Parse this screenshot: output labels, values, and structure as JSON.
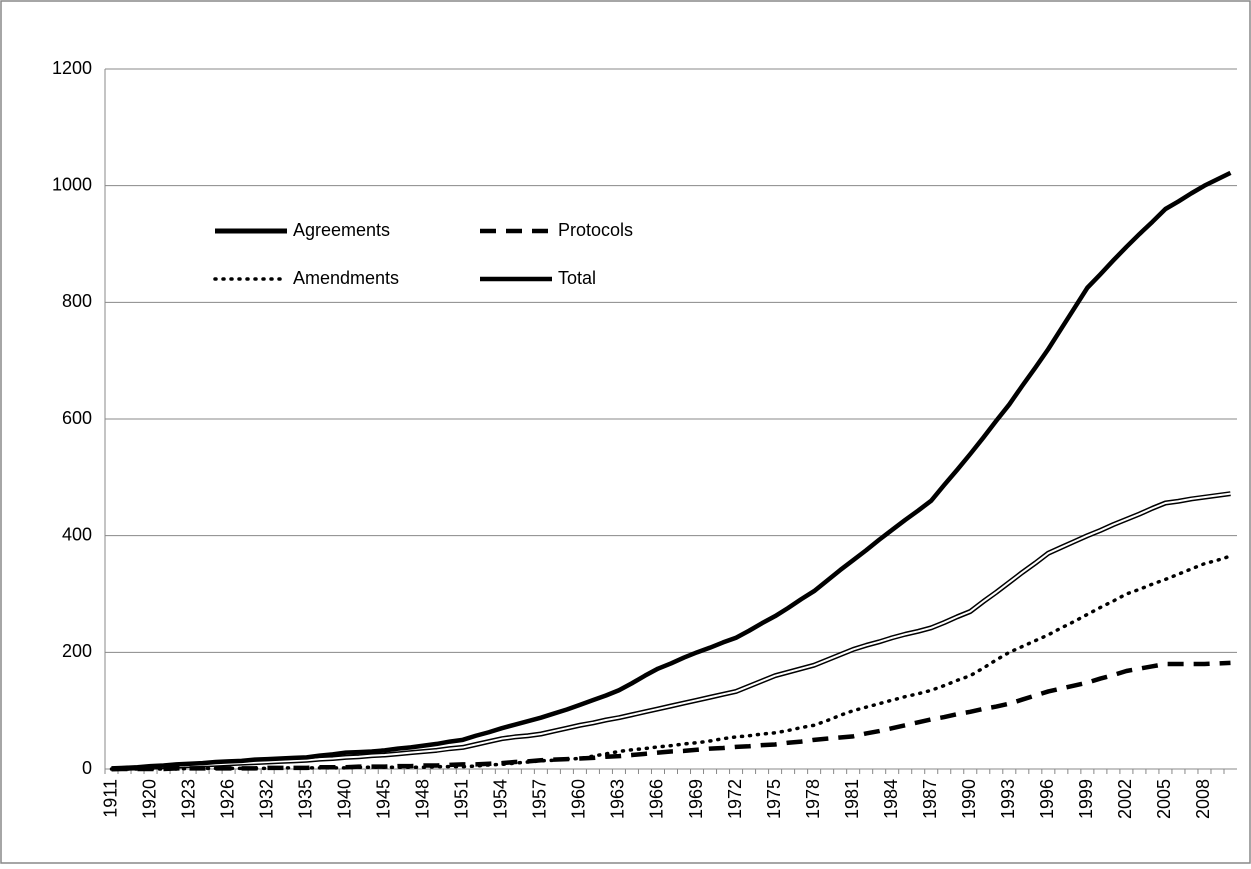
{
  "chart_data": {
    "type": "line",
    "categories": [
      "1911",
      null,
      null,
      "1920",
      null,
      null,
      "1923",
      null,
      null,
      "1926",
      null,
      null,
      "1932",
      null,
      null,
      "1935",
      null,
      null,
      "1940",
      null,
      null,
      "1945",
      null,
      null,
      "1948",
      null,
      null,
      "1951",
      null,
      null,
      "1954",
      null,
      null,
      "1957",
      null,
      null,
      "1960",
      null,
      null,
      "1963",
      null,
      null,
      "1966",
      null,
      null,
      "1969",
      null,
      null,
      "1972",
      null,
      null,
      "1975",
      null,
      null,
      "1978",
      null,
      null,
      "1981",
      null,
      null,
      "1984",
      null,
      null,
      "1987",
      null,
      null,
      "1990",
      null,
      null,
      "1993",
      null,
      null,
      "1996",
      null,
      null,
      "1999",
      null,
      null,
      "2002",
      null,
      null,
      "2005",
      null,
      null,
      "2008",
      null,
      null
    ],
    "series": [
      {
        "name": "Agreements",
        "color": "#000000",
        "style": "double",
        "values": [
          0,
          1,
          2,
          3,
          4,
          5,
          6,
          7,
          8,
          9,
          10,
          11,
          12,
          13,
          14,
          15,
          17,
          18,
          20,
          21,
          23,
          24,
          26,
          28,
          30,
          32,
          35,
          37,
          42,
          47,
          52,
          55,
          57,
          60,
          65,
          70,
          75,
          79,
          84,
          88,
          93,
          98,
          103,
          108,
          113,
          118,
          123,
          128,
          133,
          142,
          151,
          160,
          166,
          172,
          178,
          187,
          196,
          205,
          212,
          218,
          225,
          231,
          236,
          242,
          251,
          261,
          270,
          287,
          303,
          320,
          337,
          353,
          370,
          380,
          390,
          400,
          409,
          419,
          428,
          437,
          447,
          456,
          459,
          463,
          466,
          469,
          472
        ]
      },
      {
        "name": "Protocols",
        "color": "#000000",
        "style": "dashed",
        "values": [
          0,
          0,
          0,
          0,
          0,
          1,
          1,
          1,
          1,
          1,
          1,
          1,
          2,
          2,
          2,
          2,
          3,
          3,
          3,
          4,
          4,
          4,
          5,
          5,
          6,
          6,
          7,
          8,
          8,
          9,
          10,
          12,
          13,
          15,
          16,
          17,
          18,
          19,
          21,
          22,
          24,
          26,
          28,
          30,
          31,
          33,
          35,
          36,
          38,
          39,
          41,
          42,
          45,
          47,
          50,
          52,
          54,
          56,
          61,
          65,
          70,
          75,
          80,
          85,
          89,
          94,
          98,
          103,
          107,
          112,
          119,
          126,
          133,
          138,
          143,
          148,
          155,
          161,
          168,
          172,
          176,
          180,
          180,
          180,
          180,
          181,
          182
        ]
      },
      {
        "name": "Amendments",
        "color": "#000000",
        "style": "dotted",
        "values": [
          0,
          0,
          0,
          0,
          0,
          0,
          1,
          1,
          1,
          1,
          1,
          1,
          1,
          2,
          2,
          2,
          2,
          2,
          2,
          3,
          3,
          3,
          3,
          3,
          3,
          4,
          4,
          4,
          5,
          7,
          8,
          10,
          12,
          14,
          15,
          17,
          18,
          22,
          26,
          30,
          33,
          35,
          38,
          40,
          43,
          45,
          48,
          52,
          55,
          57,
          60,
          62,
          66,
          71,
          75,
          83,
          92,
          100,
          106,
          112,
          118,
          124,
          129,
          135,
          143,
          152,
          160,
          173,
          187,
          200,
          210,
          220,
          230,
          242,
          253,
          265,
          277,
          288,
          300,
          308,
          317,
          325,
          334,
          343,
          352,
          358,
          365
        ]
      },
      {
        "name": "Total",
        "color": "#000000",
        "style": "solid",
        "values": [
          1,
          2,
          3,
          5,
          6,
          8,
          9,
          10,
          12,
          13,
          14,
          16,
          17,
          18,
          19,
          20,
          23,
          25,
          28,
          29,
          30,
          32,
          35,
          37,
          40,
          43,
          47,
          50,
          57,
          63,
          70,
          76,
          82,
          88,
          95,
          102,
          110,
          118,
          126,
          135,
          147,
          160,
          172,
          181,
          191,
          200,
          208,
          217,
          225,
          237,
          250,
          262,
          276,
          291,
          305,
          323,
          341,
          358,
          375,
          393,
          410,
          427,
          443,
          460,
          487,
          513,
          540,
          568,
          597,
          625,
          657,
          688,
          720,
          755,
          790,
          825,
          848,
          872,
          895,
          917,
          938,
          960,
          973,
          987,
          1000,
          1011,
          1022
        ]
      }
    ],
    "ylim": [
      0,
      1200
    ],
    "yticks": [
      0,
      200,
      400,
      600,
      800,
      1000,
      1200
    ],
    "grid": true,
    "legend": "upper-left"
  }
}
